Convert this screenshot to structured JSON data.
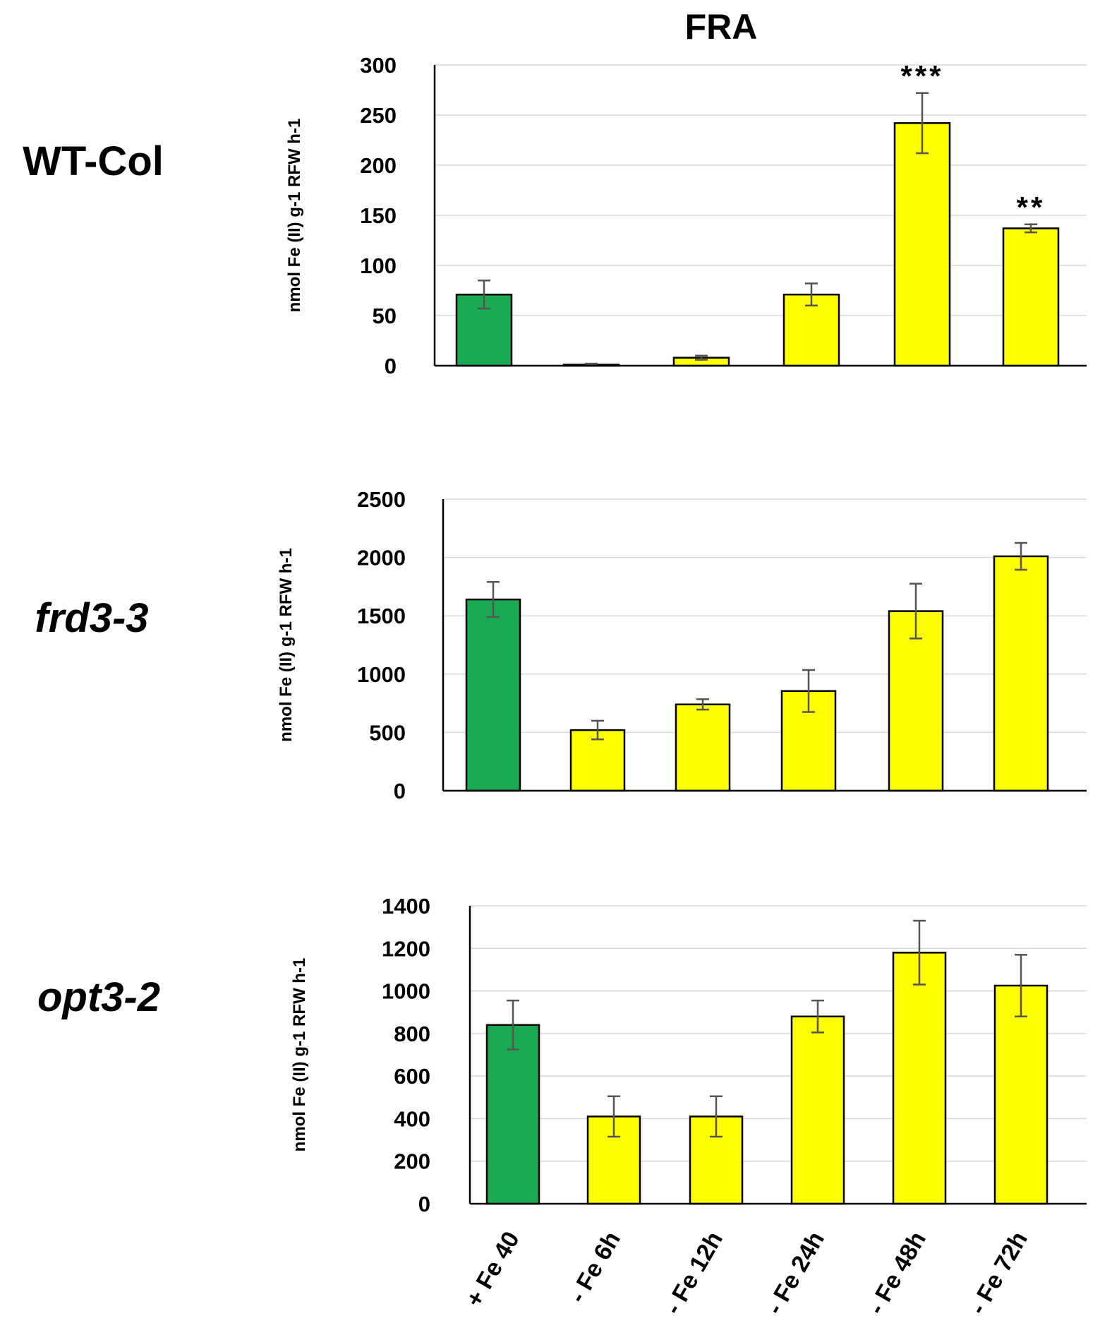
{
  "figure_title": "FRA",
  "colors": {
    "control": "#1aaa52",
    "treatment": "#ffff00"
  },
  "chart_data": [
    {
      "type": "bar",
      "panel_label": "WT-Col",
      "label_style": "normal",
      "title": "FRA",
      "ylabel": "nmol Fe (II) g-1 RFW h-1",
      "ylim": [
        0,
        300
      ],
      "yticks": [
        0,
        50,
        100,
        150,
        200,
        250,
        300
      ],
      "categories": [
        "+ Fe 40",
        "- Fe 6h",
        "- Fe 12h",
        "- Fe 24h",
        "- Fe 48h",
        "- Fe 72h"
      ],
      "values": [
        71,
        1,
        8,
        71,
        242,
        137
      ],
      "errors": [
        14,
        1,
        2,
        11,
        30,
        4
      ],
      "significance": [
        "",
        "",
        "",
        "",
        "***",
        "**"
      ]
    },
    {
      "type": "bar",
      "panel_label": "frd3-3",
      "label_style": "italic",
      "ylabel": "nmol Fe (II) g-1 RFW h-1",
      "ylim": [
        0,
        2500
      ],
      "yticks": [
        0,
        500,
        1000,
        1500,
        2000,
        2500
      ],
      "categories": [
        "+ Fe 40",
        "- Fe 6h",
        "- Fe 12h",
        "- Fe 24h",
        "- Fe 48h",
        "- Fe 72h"
      ],
      "values": [
        1640,
        520,
        740,
        855,
        1540,
        2010
      ],
      "errors": [
        150,
        80,
        45,
        180,
        235,
        115
      ],
      "significance": [
        "",
        "",
        "",
        "",
        "",
        ""
      ]
    },
    {
      "type": "bar",
      "panel_label": "opt3-2",
      "label_style": "italic",
      "ylabel": "nmol Fe (II) g-1 RFW h-1",
      "ylim": [
        0,
        1400
      ],
      "yticks": [
        0,
        200,
        400,
        600,
        800,
        1000,
        1200,
        1400
      ],
      "categories": [
        "+ Fe 40",
        "- Fe 6h",
        "- Fe 12h",
        "- Fe 24h",
        "- Fe 48h",
        "- Fe 72h"
      ],
      "values": [
        840,
        410,
        410,
        880,
        1180,
        1025
      ],
      "errors": [
        115,
        95,
        95,
        75,
        150,
        145
      ],
      "significance": [
        "",
        "",
        "",
        "",
        "",
        ""
      ]
    }
  ]
}
